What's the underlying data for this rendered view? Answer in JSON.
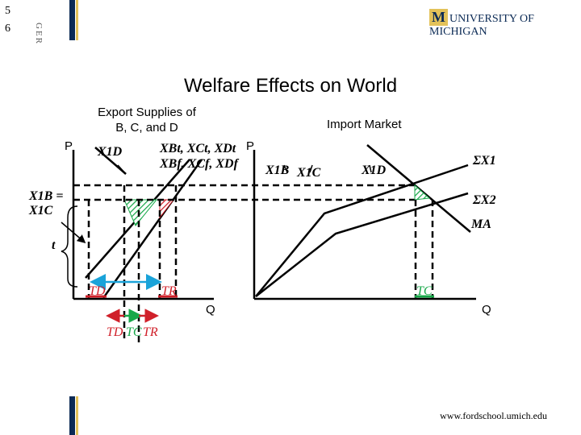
{
  "slide": {
    "num_top": "5",
    "num_bottom": "6",
    "side_label": "GER"
  },
  "logo": {
    "mark": "M",
    "text": "UNIVERSITY OF MICHIGAN"
  },
  "title": "Welfare Effects on World",
  "left_panel": {
    "heading_line1": "Export Supplies of",
    "heading_line2": "B, C, and D",
    "axis_p": "P",
    "axis_q": "Q",
    "curve_x1d": "X1D",
    "curve_top": "XBt, XCt, XDt",
    "curve_bottom": "XBf, XCf, XDf",
    "price_label": "X1B = X1C",
    "tariff_label": "t",
    "tick_td": "TD",
    "tick_tr": "TR",
    "bottom_labels": [
      "TD",
      "TC",
      "TR"
    ]
  },
  "right_panel": {
    "heading": "Import Market",
    "axis_p": "P",
    "axis_q": "Q",
    "curve_x1b": "X1B",
    "curve_x1c": "X1C",
    "curve_x1d": "X1D",
    "sum_x1": "ΣX1",
    "sum_x2": "ΣX2",
    "ma": "MA",
    "tick_tc": "TC"
  },
  "footer": "www.fordschool.umich.edu",
  "colors": {
    "navy": "#0b2a55",
    "gold": "#e3c25a",
    "blue_arrow": "#1aa3d9",
    "red": "#d0202a",
    "green": "#18a84a"
  }
}
